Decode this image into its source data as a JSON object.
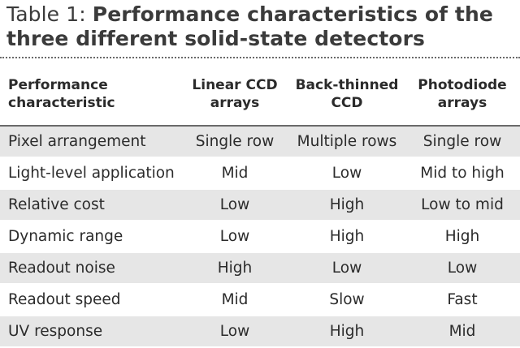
{
  "title": {
    "prefix": "Table 1: ",
    "text": "Performance characteristics of the three different solid-state detectors"
  },
  "table": {
    "headers": [
      [
        "Performance",
        "characteristic"
      ],
      [
        "Linear CCD",
        "arrays"
      ],
      [
        "Back-thinned",
        "CCD"
      ],
      [
        "Photodiode",
        "arrays"
      ]
    ],
    "rows": [
      [
        "Pixel arrangement",
        "Single row",
        "Multiple rows",
        "Single row"
      ],
      [
        "Light-level application",
        "Mid",
        "Low",
        "Mid to high"
      ],
      [
        "Relative cost",
        "Low",
        "High",
        "Low to mid"
      ],
      [
        "Dynamic range",
        "Low",
        "High",
        "High"
      ],
      [
        "Readout noise",
        "High",
        "Low",
        "Low"
      ],
      [
        "Readout speed",
        "Mid",
        "Slow",
        "Fast"
      ],
      [
        "UV response",
        "Low",
        "High",
        "Mid"
      ]
    ]
  }
}
